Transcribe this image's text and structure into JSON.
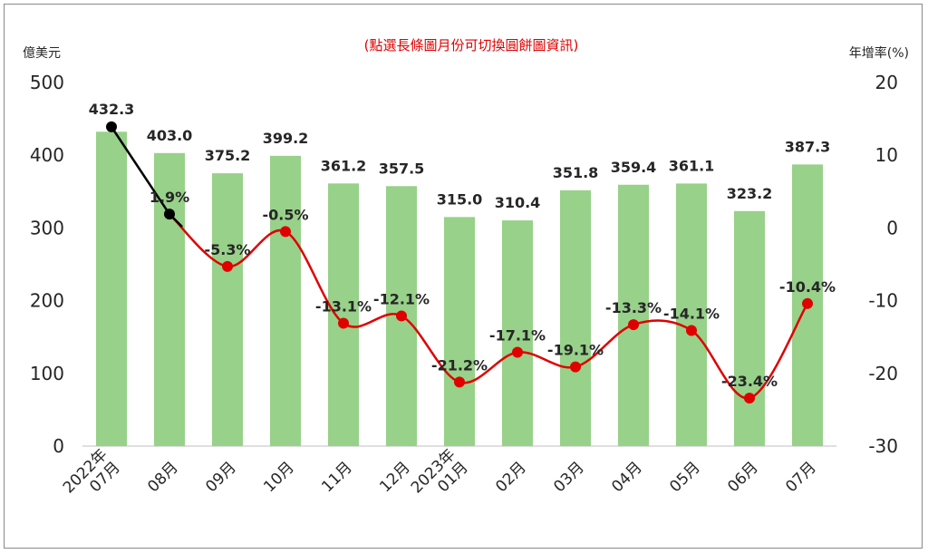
{
  "chart_data": {
    "type": "bar",
    "note": "(點選長條圖月份可切換圓餅圖資訊)",
    "y_left": {
      "unit": "億美元",
      "range": [
        0,
        500
      ],
      "ticks": [
        "0",
        "100",
        "200",
        "300",
        "400",
        "500"
      ]
    },
    "y_right": {
      "unit": "年增率(%)",
      "range": [
        -30,
        20
      ],
      "ticks": [
        "-30",
        "-20",
        "-10",
        "0",
        "10",
        "20"
      ]
    },
    "categories": [
      [
        "2022年",
        "07月"
      ],
      [
        "08月"
      ],
      [
        "09月"
      ],
      [
        "10月"
      ],
      [
        "11月"
      ],
      [
        "12月"
      ],
      [
        "2023年",
        "01月"
      ],
      [
        "02月"
      ],
      [
        "03月"
      ],
      [
        "04月"
      ],
      [
        "05月"
      ],
      [
        "06月"
      ],
      [
        "07月"
      ]
    ],
    "series": [
      {
        "type": "bar",
        "axis": "left",
        "color": "#98d18a",
        "values": [
          432.3,
          403.0,
          375.2,
          399.2,
          361.2,
          357.5,
          315.0,
          310.4,
          351.8,
          359.4,
          361.1,
          323.2,
          387.3
        ],
        "labels": [
          "432.3",
          "403.0",
          "375.2",
          "399.2",
          "361.2",
          "357.5",
          "315.0",
          "310.4",
          "351.8",
          "359.4",
          "361.1",
          "323.2",
          "387.3"
        ]
      },
      {
        "type": "line",
        "axis": "right",
        "color": "#e00000",
        "first_segment_color": "#000000",
        "values": [
          13.9,
          1.9,
          -5.3,
          -0.5,
          -13.1,
          -12.1,
          -21.2,
          -17.1,
          -19.1,
          -13.3,
          -14.1,
          -23.4,
          -10.4
        ],
        "labels": [
          "",
          "1.9%",
          "-5.3%",
          "-0.5%",
          "-13.1%",
          "-12.1%",
          "-21.2%",
          "-17.1%",
          "-19.1%",
          "-13.3%",
          "-14.1%",
          "-23.4%",
          "-10.4%"
        ]
      }
    ],
    "grid": false
  }
}
